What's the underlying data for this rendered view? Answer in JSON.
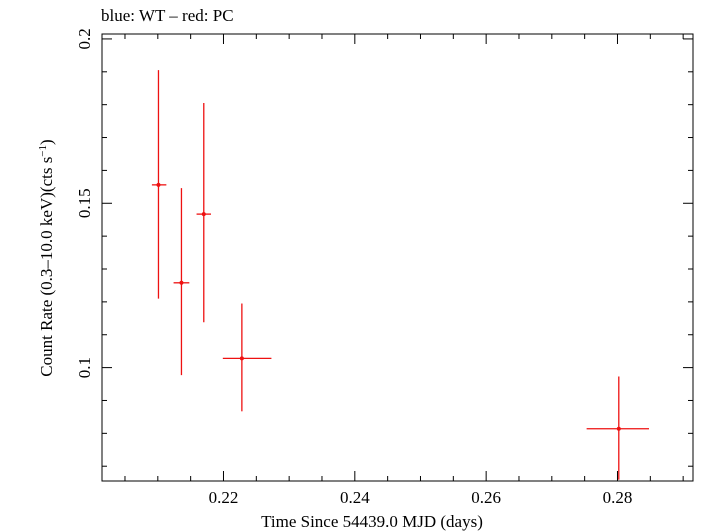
{
  "chart_data": {
    "type": "scatter",
    "title": "blue: WT – red: PC",
    "xlabel": "Time Since 54439.0 MJD (days)",
    "ylabel_main": "Count Rate (0.3–10.0 keV)(cts s",
    "ylabel_sup": "−1",
    "ylabel_close": ")",
    "xlim": [
      0.2015,
      0.2915
    ],
    "ylim": [
      0.0655,
      0.2015
    ],
    "xticks": [
      0.22,
      0.24,
      0.26,
      0.28
    ],
    "xtick_labels": [
      "0.22",
      "0.24",
      "0.26",
      "0.28"
    ],
    "yticks": [
      0.1,
      0.15,
      0.2
    ],
    "ytick_labels": [
      "0.1",
      "0.15",
      "0.2"
    ],
    "series": [
      {
        "name": "PC",
        "color": "#ee1111",
        "points": [
          {
            "x": 0.2101,
            "y": 0.1556,
            "xerr": [
              0.001,
              0.0012
            ],
            "yerr": [
              0.0346,
              0.0349
            ]
          },
          {
            "x": 0.2136,
            "y": 0.1258,
            "xerr": [
              0.0012,
              0.0012
            ],
            "yerr": [
              0.0281,
              0.0288
            ]
          },
          {
            "x": 0.217,
            "y": 0.1467,
            "xerr": [
              0.0011,
              0.0011
            ],
            "yerr": [
              0.0329,
              0.0338
            ]
          },
          {
            "x": 0.2228,
            "y": 0.1028,
            "xerr": [
              0.0029,
              0.0045
            ],
            "yerr": [
              0.0161,
              0.0167
            ]
          },
          {
            "x": 0.2802,
            "y": 0.0814,
            "xerr": [
              0.0049,
              0.0046
            ],
            "yerr": [
              0.0155,
              0.0159
            ]
          }
        ]
      }
    ]
  }
}
